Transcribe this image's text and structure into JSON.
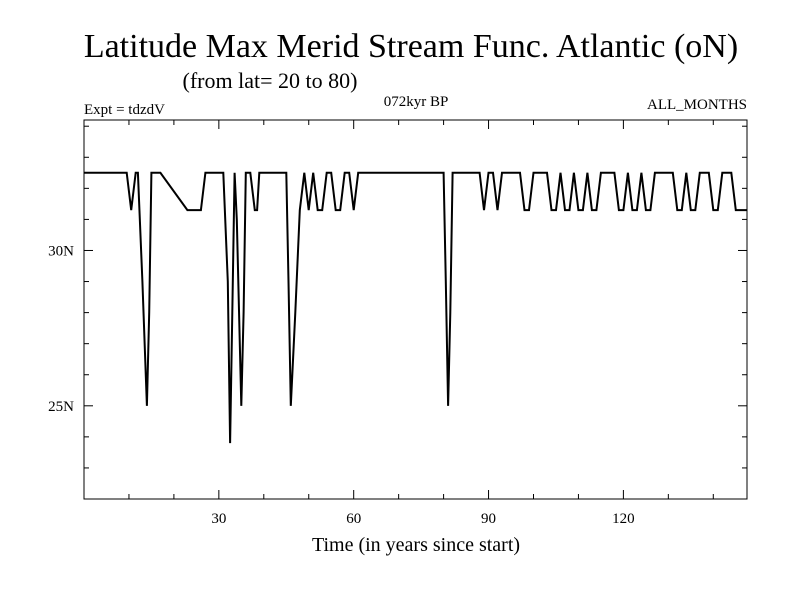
{
  "chart_data": {
    "type": "line",
    "title": "Latitude Max Merid Stream Func. Atlantic (oN)",
    "subtitle": "(from lat= 20 to 80)",
    "annotations": {
      "left": "Expt = tdzdV",
      "center": "072kyr BP",
      "right": "ALL_MONTHS"
    },
    "xlabel": "Time (in years since start)",
    "ylabel": "",
    "xlim": [
      0,
      147.5
    ],
    "ylim": [
      22,
      34.2
    ],
    "x_ticks": [
      30,
      60,
      90,
      120
    ],
    "x_tick_labels": [
      "30",
      "60",
      "90",
      "120"
    ],
    "y_ticks": [
      25,
      30
    ],
    "y_tick_labels": [
      "25N",
      "30N"
    ],
    "grid": false,
    "series": [
      {
        "x": [
          0,
          9.5,
          10.5,
          11.5,
          12,
          13,
          14,
          14.5,
          15,
          16,
          16.5,
          17,
          23,
          24,
          26,
          27,
          30,
          31,
          32,
          32.5,
          33,
          33.5,
          34,
          35,
          35.5,
          36,
          37,
          38,
          38.5,
          39,
          40,
          41,
          44,
          45,
          45.5,
          46,
          47,
          48,
          49,
          50,
          51,
          52,
          53,
          54,
          55,
          56,
          57,
          58,
          59,
          60,
          61,
          62,
          63,
          64,
          65,
          70,
          79,
          80,
          80.5,
          81,
          81.5,
          82,
          83,
          88,
          89,
          90,
          91,
          92,
          93,
          95,
          96,
          97,
          98,
          99,
          100,
          102,
          103,
          104,
          105,
          106,
          107,
          108,
          109,
          110,
          111,
          112,
          113,
          114,
          115,
          118,
          119,
          120,
          121,
          122,
          123,
          124,
          125,
          126,
          127,
          130,
          131,
          132,
          133,
          134,
          135,
          136,
          137,
          138,
          139,
          140,
          141,
          142,
          143,
          144,
          145,
          147.5
        ],
        "y": [
          32.5,
          32.5,
          31.3,
          32.5,
          32.5,
          29,
          25,
          28,
          32.5,
          32.5,
          32.5,
          32.5,
          31.3,
          31.3,
          31.3,
          32.5,
          32.5,
          32.5,
          29,
          23.8,
          28,
          32.5,
          31,
          25,
          28,
          32.5,
          32.5,
          31.3,
          31.3,
          32.5,
          32.5,
          32.5,
          32.5,
          32.5,
          29,
          25,
          28,
          31.3,
          32.5,
          31.3,
          32.5,
          31.3,
          31.3,
          32.5,
          32.5,
          31.3,
          31.3,
          32.5,
          32.5,
          31.3,
          32.5,
          32.5,
          32.5,
          32.5,
          32.5,
          32.5,
          32.5,
          32.5,
          29,
          25,
          28,
          32.5,
          32.5,
          32.5,
          31.3,
          32.5,
          32.5,
          31.3,
          32.5,
          32.5,
          32.5,
          32.5,
          31.3,
          31.3,
          32.5,
          32.5,
          32.5,
          31.3,
          31.3,
          32.5,
          31.3,
          31.3,
          32.5,
          31.3,
          31.3,
          32.5,
          31.3,
          31.3,
          32.5,
          32.5,
          31.3,
          31.3,
          32.5,
          31.3,
          31.3,
          32.5,
          31.3,
          31.3,
          32.5,
          32.5,
          32.5,
          31.3,
          31.3,
          32.5,
          31.3,
          31.3,
          32.5,
          32.5,
          32.5,
          31.3,
          31.3,
          32.5,
          32.5,
          32.5,
          31.3,
          31.3
        ]
      }
    ]
  }
}
